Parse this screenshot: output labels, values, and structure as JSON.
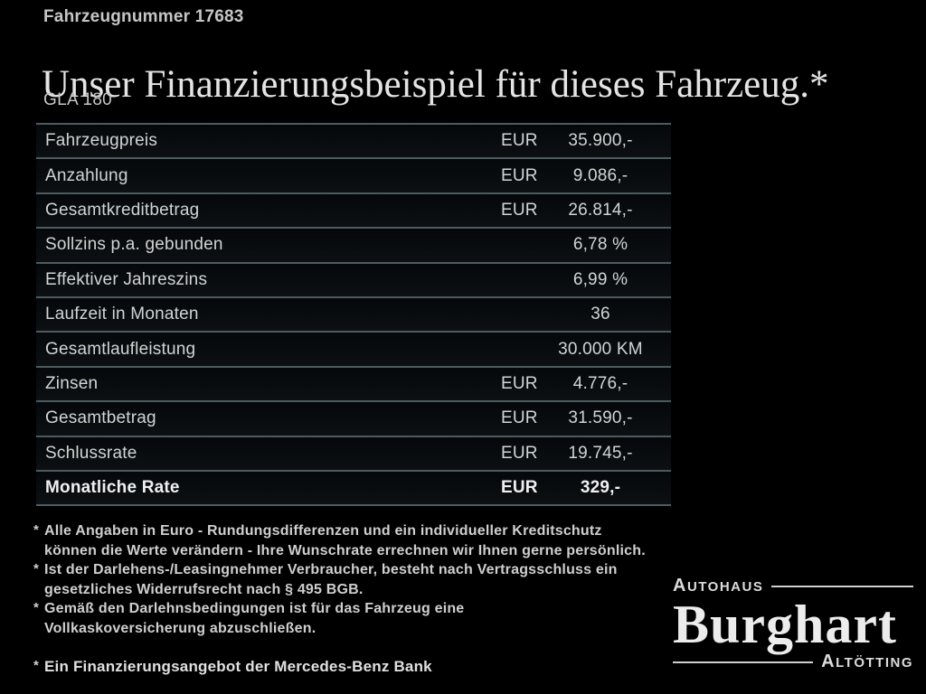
{
  "header": {
    "vehicle_number": "Fahrzeugnummer 17683",
    "title": "Unser Finanzierungsbeispiel für dieses Fahrzeug.*",
    "model": "GLA 180"
  },
  "table": {
    "rows": [
      {
        "label": "Fahrzeugpreis",
        "currency": "EUR",
        "value": "35.900,-"
      },
      {
        "label": "Anzahlung",
        "currency": "EUR",
        "value": "9.086,-"
      },
      {
        "label": "Gesamtkreditbetrag",
        "currency": "EUR",
        "value": "26.814,-"
      },
      {
        "label": "Sollzins p.a. gebunden",
        "currency": "",
        "value": "6,78 %"
      },
      {
        "label": "Effektiver Jahreszins",
        "currency": "",
        "value": "6,99 %"
      },
      {
        "label": "Laufzeit in Monaten",
        "currency": "",
        "value": "36"
      },
      {
        "label": "Gesamtlaufleistung",
        "currency": "",
        "value": "30.000 KM"
      },
      {
        "label": "Zinsen",
        "currency": "EUR",
        "value": "4.776,-"
      },
      {
        "label": "Gesamtbetrag",
        "currency": "EUR",
        "value": "31.590,-"
      },
      {
        "label": "Schlussrate",
        "currency": "EUR",
        "value": "19.745,-"
      },
      {
        "label": "Monatliche Rate",
        "currency": "EUR",
        "value": "329,-"
      }
    ]
  },
  "footnotes": {
    "marker": "*",
    "items": [
      {
        "lines": [
          "Alle Angaben in Euro - Rundungsdifferenzen und ein individueller Kreditschutz",
          "können die Werte verändern - Ihre Wunschrate errechnen wir Ihnen gerne persönlich."
        ]
      },
      {
        "lines": [
          "Ist der Darlehens-/Leasingnehmer Verbraucher, besteht nach Vertragsschluss ein",
          "gesetzliches Widerrufsrecht nach § 495 BGB."
        ]
      },
      {
        "lines": [
          "Gemäß den Darlehnsbedingungen ist für das Fahrzeug eine",
          "Vollkaskoversicherung abzuschließen."
        ]
      }
    ],
    "financing_note": "Ein Finanzierungsangebot der Mercedes-Benz Bank"
  },
  "logo": {
    "top": "AUTOHAUS",
    "name": "Burghart",
    "bottom": "ALTÖTTING"
  },
  "colors": {
    "background": "#000000",
    "text": "#d3d3d3",
    "separator_line": "#4d5b60"
  }
}
